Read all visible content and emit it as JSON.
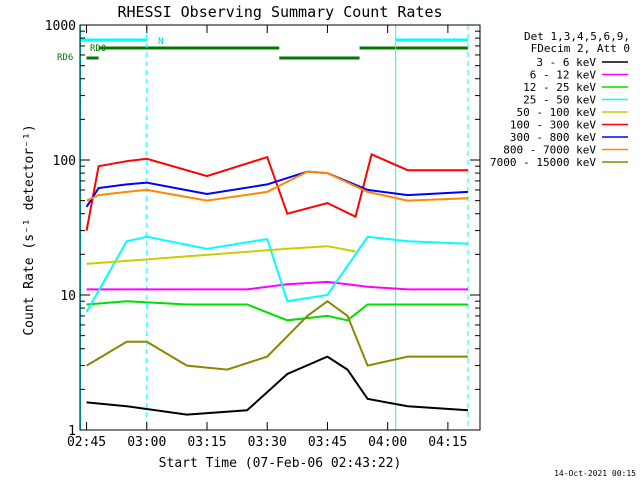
{
  "chart_data": {
    "type": "line",
    "title": "RHESSI Observing Summary Count Rates",
    "xlabel": "Start Time (07-Feb-06 02:43:22)",
    "ylabel": "Count Rate (s⁻¹ detector⁻¹)",
    "y_scale": "log",
    "ylim": [
      1,
      1000
    ],
    "xlim": [
      "02:43:22",
      "04:23:00"
    ],
    "x_ticks": [
      "02:45",
      "03:00",
      "03:15",
      "03:30",
      "03:45",
      "04:00",
      "04:15"
    ],
    "y_ticks": [
      "1",
      "10",
      "100",
      "1000"
    ],
    "legend_position": "right",
    "legend_header": [
      "Det 1,3,4,5,6,9,",
      "FDecim 2, Att 0"
    ],
    "footer_date": "14-Oct-2021 00:15",
    "flag_labels": [
      "N",
      "RD0",
      "RD6"
    ],
    "series": [
      {
        "name": "3 - 6 keV",
        "color": "#000000",
        "x": [
          "02:45",
          "02:55",
          "03:10",
          "03:25",
          "03:35",
          "03:45",
          "03:50",
          "03:55",
          "04:05",
          "04:20"
        ],
        "y": [
          1.6,
          1.5,
          1.3,
          1.4,
          2.6,
          3.5,
          2.8,
          1.7,
          1.5,
          1.4
        ]
      },
      {
        "name": "6 - 12 keV",
        "color": "#ff00ff",
        "x": [
          "02:45",
          "02:55",
          "03:10",
          "03:25",
          "03:35",
          "03:45",
          "03:50",
          "03:55",
          "04:05",
          "04:20"
        ],
        "y": [
          11,
          11,
          11,
          11,
          12,
          12.5,
          12,
          11.5,
          11,
          11
        ]
      },
      {
        "name": "12 - 25 keV",
        "color": "#00dd00",
        "x": [
          "02:45",
          "02:55",
          "03:10",
          "03:25",
          "03:35",
          "03:45",
          "03:50",
          "03:55",
          "04:05",
          "04:20"
        ],
        "y": [
          8.5,
          9,
          8.5,
          8.5,
          6.5,
          7,
          6.5,
          8.5,
          8.5,
          8.5
        ]
      },
      {
        "name": "25 - 50 keV",
        "color": "#00ffff",
        "x": [
          "02:45",
          "02:55",
          "03:00",
          "03:15",
          "03:30",
          "03:35",
          "03:45",
          "03:55",
          "04:05",
          "04:20"
        ],
        "y": [
          7.5,
          25,
          27,
          22,
          26,
          9,
          10,
          27,
          25,
          24
        ]
      },
      {
        "name": "50 - 100 keV",
        "color": "#cccc00",
        "x": [
          "02:45",
          "03:35",
          "03:45",
          "03:52"
        ],
        "y": [
          17,
          22,
          23,
          21
        ]
      },
      {
        "name": "100 - 300 keV",
        "color": "#ff0000",
        "x": [
          "02:45",
          "02:48",
          "02:55",
          "03:00",
          "03:15",
          "03:30",
          "03:35",
          "03:45",
          "03:52",
          "03:56",
          "04:05",
          "04:20"
        ],
        "y": [
          30,
          90,
          98,
          102,
          76,
          105,
          40,
          48,
          38,
          110,
          84,
          84
        ]
      },
      {
        "name": "300 - 800 keV",
        "color": "#0000ff",
        "x": [
          "02:45",
          "02:48",
          "02:55",
          "03:00",
          "03:15",
          "03:30",
          "03:40",
          "03:45",
          "03:55",
          "04:05",
          "04:20"
        ],
        "y": [
          45,
          62,
          66,
          68,
          56,
          66,
          82,
          80,
          60,
          55,
          58
        ]
      },
      {
        "name": "800 - 7000 keV",
        "color": "#ff8800",
        "x": [
          "02:45",
          "02:48",
          "02:55",
          "03:00",
          "03:15",
          "03:30",
          "03:40",
          "03:45",
          "03:55",
          "04:05",
          "04:20"
        ],
        "y": [
          50,
          55,
          58,
          60,
          50,
          58,
          82,
          80,
          58,
          50,
          52
        ]
      },
      {
        "name": "7000 - 15000 keV",
        "color": "#888800",
        "x": [
          "02:45",
          "02:55",
          "03:00",
          "03:10",
          "03:20",
          "03:30",
          "03:40",
          "03:45",
          "03:50",
          "03:55",
          "04:05",
          "04:20"
        ],
        "y": [
          3,
          4.5,
          4.5,
          3,
          2.8,
          3.5,
          7,
          9,
          7,
          3,
          3.5,
          3.5
        ]
      }
    ]
  }
}
